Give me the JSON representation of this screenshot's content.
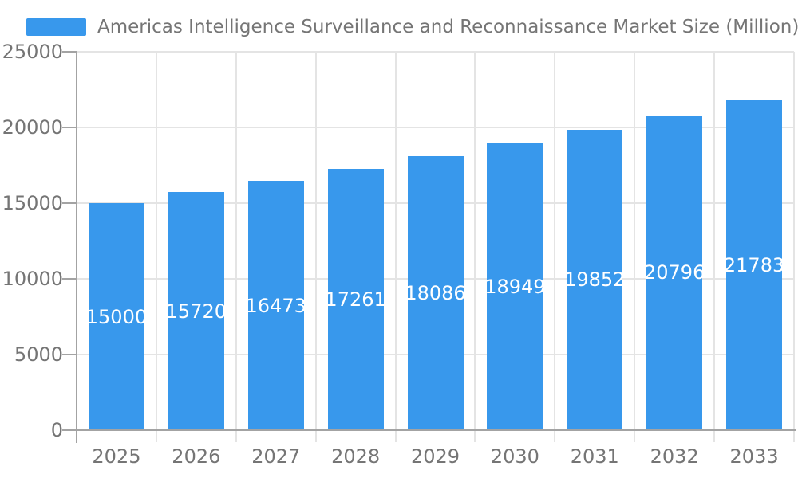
{
  "chart_data": {
    "type": "bar",
    "title": "Americas Intelligence Surveillance and Reconnaissance Market Size (Million)",
    "categories": [
      "2025",
      "2026",
      "2027",
      "2028",
      "2029",
      "2030",
      "2031",
      "2032",
      "2033"
    ],
    "values": [
      15000,
      15720,
      16473,
      17261,
      18086,
      18949,
      19852,
      20796,
      21783
    ],
    "bar_labels": [
      "15000",
      "15720",
      "16473",
      "17261",
      "18086",
      "18949",
      "19852",
      "20796",
      "21783"
    ],
    "xlabel": "",
    "ylabel": "",
    "ylim": [
      0,
      25000
    ],
    "yticks": [
      0,
      5000,
      10000,
      15000,
      20000,
      25000
    ],
    "grid": true,
    "legend_position": "top-left",
    "colors": {
      "bar": "#3898EC",
      "grid_line": "#E4E4E4",
      "axis_line": "#A3A3A3",
      "axis_text": "#757575",
      "bar_value_text": "#FFFFFF",
      "background": "#FFFFFF"
    }
  }
}
